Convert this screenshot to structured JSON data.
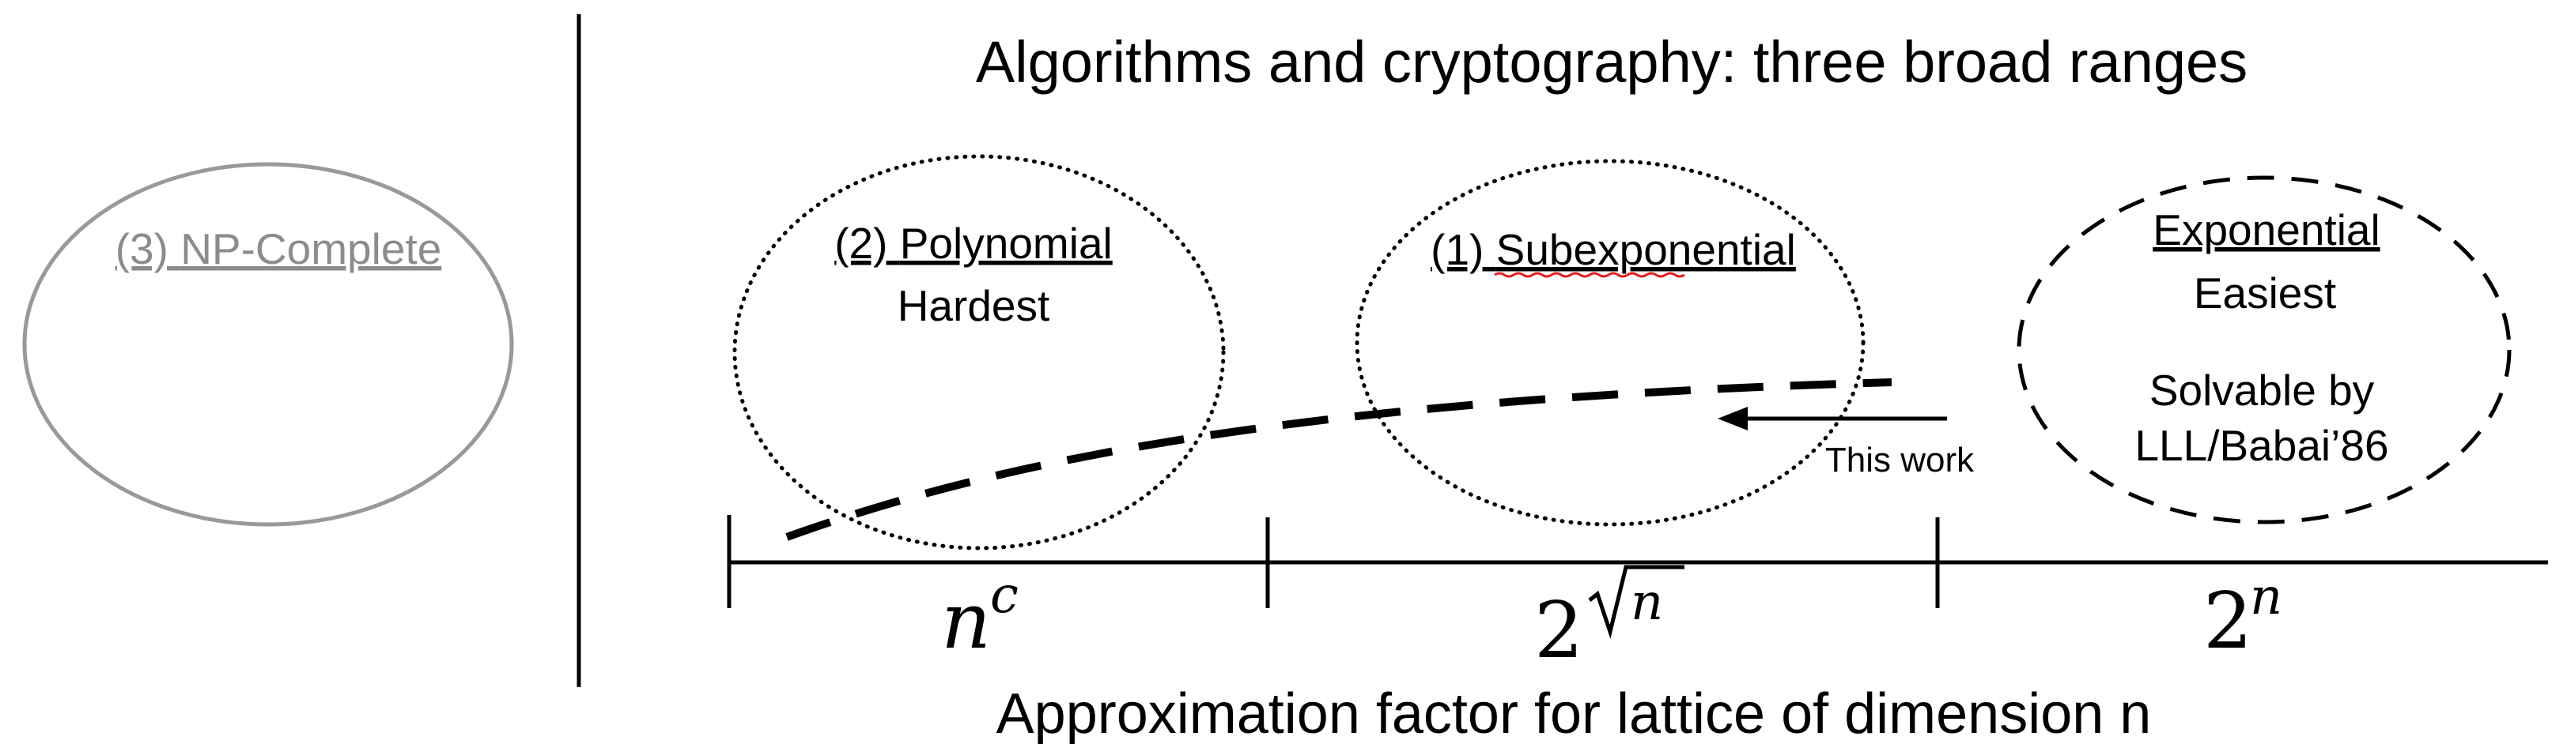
{
  "title": "Algorithms and cryptography: three broad ranges",
  "x_axis_label": "Approximation factor for lattice of dimension n",
  "regions": {
    "np_complete": {
      "number": "(3)",
      "name": "NP-Complete"
    },
    "polynomial": {
      "number": "(2)",
      "name": "Polynomial",
      "note": "Hardest"
    },
    "subexponential": {
      "number": "(1)",
      "name": "Subexponential"
    },
    "exponential": {
      "name": "Exponential",
      "note": "Easiest",
      "detail_line1": "Solvable by",
      "detail_line2": "LLL/Babai’86"
    }
  },
  "arrow_label": "This work",
  "axis_ticks": {
    "poly": {
      "base": "n",
      "exponent": "c"
    },
    "subexp": {
      "base": "2",
      "exponent": "n"
    },
    "exp": {
      "base": "2",
      "exponent": "n"
    }
  },
  "colors": {
    "ink": "#000000",
    "muted": "#8c8c8c",
    "spell_underline": "#e02020"
  }
}
